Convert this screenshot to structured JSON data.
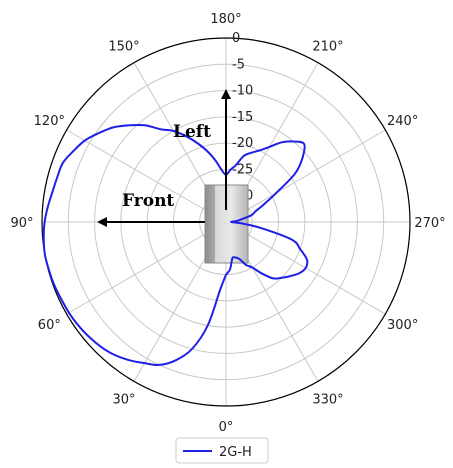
{
  "chart_data": {
    "type": "line",
    "projection": "polar",
    "theta_zero": "bottom",
    "theta_direction": "counter-clockwise",
    "theta_ticks": [
      "0°",
      "30°",
      "60°",
      "90°",
      "120°",
      "150°",
      "180°",
      "210°",
      "240°",
      "270°",
      "300°",
      "330°"
    ],
    "r_ticks": [
      "0",
      "-5",
      "-10",
      "-15",
      "-20",
      "-25",
      "-30"
    ],
    "rlim": [
      -35,
      0
    ],
    "grid": true,
    "legend_position": "bottom-center",
    "annotations": [
      {
        "text": "Left",
        "direction_deg": 180
      },
      {
        "text": "Front",
        "direction_deg": 90
      }
    ],
    "series": [
      {
        "name": "2G-H",
        "color": "#1f1fe6",
        "theta": [
          0,
          5,
          10,
          15,
          20,
          25,
          30,
          35,
          40,
          45,
          50,
          55,
          60,
          65,
          70,
          75,
          80,
          85,
          90,
          95,
          100,
          105,
          110,
          115,
          120,
          125,
          130,
          135,
          140,
          145,
          150,
          155,
          160,
          165,
          170,
          175,
          180,
          185,
          190,
          195,
          200,
          205,
          210,
          215,
          220,
          225,
          230,
          235,
          240,
          245,
          250,
          255,
          260,
          265,
          270,
          275,
          280,
          285,
          290,
          295,
          300,
          305,
          310,
          315,
          320,
          325,
          330,
          335,
          340,
          345,
          350,
          355,
          360
        ],
        "r": [
          -25,
          -22,
          -15,
          -10,
          -7,
          -5,
          -4,
          -2.9,
          -2,
          -1.4,
          -1,
          -0.7,
          -0.5,
          -0.4,
          -0.2,
          -0.1,
          0,
          -0.2,
          -0.5,
          -1,
          -1.5,
          -1.8,
          -2,
          -3,
          -4,
          -5.5,
          -7,
          -9,
          -11,
          -13.5,
          -15,
          -17,
          -19,
          -21,
          -23,
          -25,
          -26,
          -25,
          -24,
          -22,
          -21,
          -20,
          -18.5,
          -16.5,
          -15,
          -14,
          -16,
          -19,
          -24,
          -27,
          -29,
          -30,
          -32,
          -33,
          -34,
          -32,
          -28,
          -22,
          -20,
          -18,
          -17.5,
          -18,
          -19,
          -20,
          -21,
          -23,
          -25,
          -26,
          -27.5,
          -28,
          -28,
          -26,
          -25
        ]
      }
    ]
  }
}
